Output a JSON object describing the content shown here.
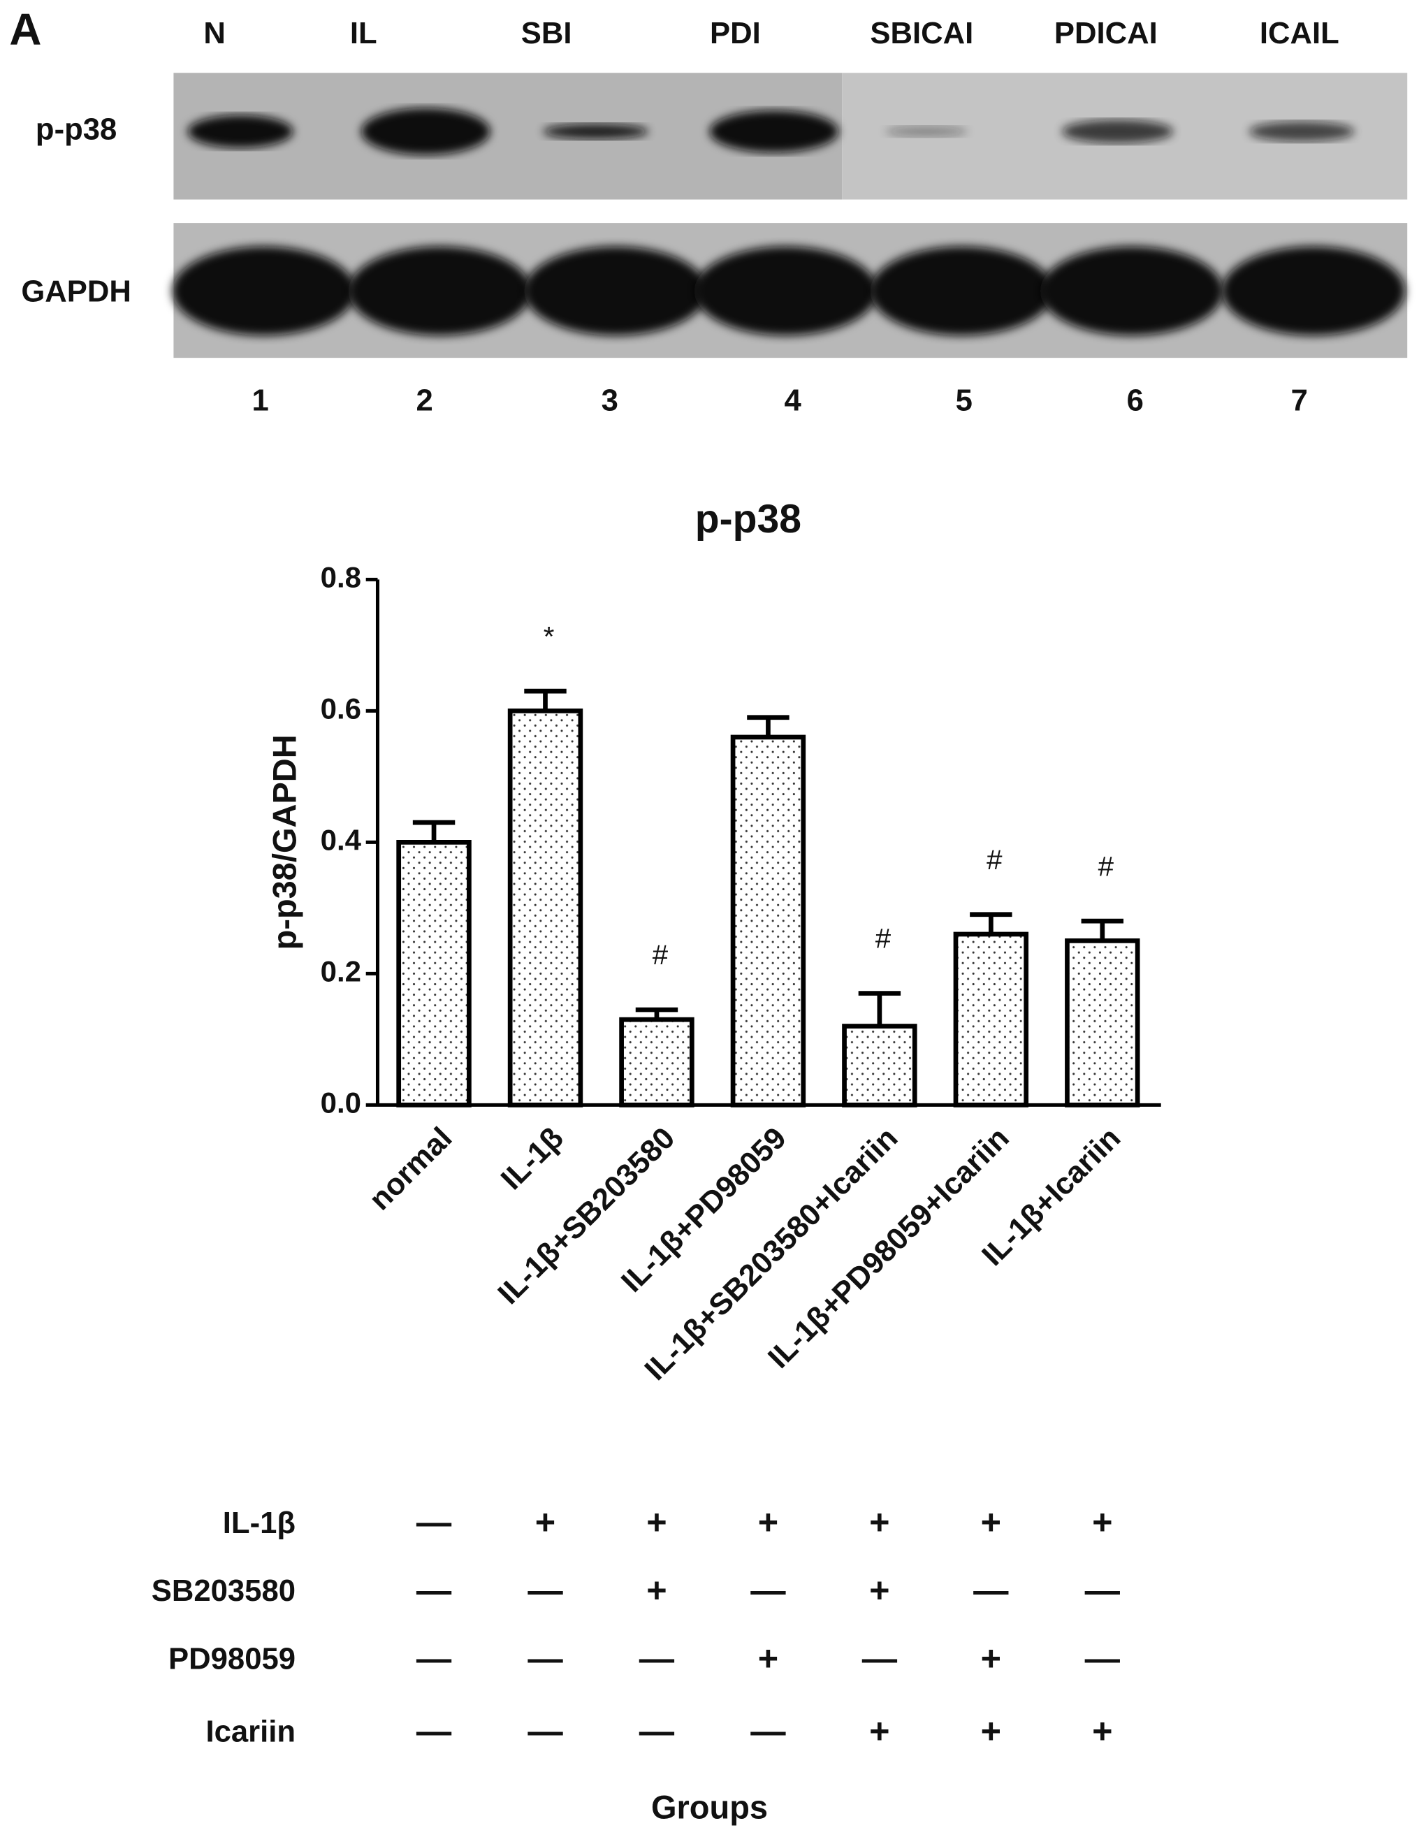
{
  "panel_label": "A",
  "blot": {
    "lane_labels": [
      "N",
      "IL",
      "SBI",
      "PDI",
      "SBICAI",
      "PDICAI",
      "ICAIL"
    ],
    "row_labels": [
      "p-p38",
      "GAPDH"
    ],
    "lane_numbers": [
      "1",
      "2",
      "3",
      "4",
      "5",
      "6",
      "7"
    ]
  },
  "chart_data": {
    "type": "bar",
    "title": "p-p38",
    "y_label": "p-p38/GAPDH",
    "x_label": "Groups",
    "categories": [
      "normal",
      "IL-1β",
      "IL-1β+SB203580",
      "IL-1β+PD98059",
      "IL-1β+SB203580+Icariin",
      "IL-1β+PD98059+Icariin",
      "IL-1β+Icariin"
    ],
    "values": [
      0.4,
      0.6,
      0.13,
      0.56,
      0.12,
      0.26,
      0.25
    ],
    "errors": [
      0.03,
      0.03,
      0.015,
      0.03,
      0.05,
      0.03,
      0.03
    ],
    "annotations": [
      null,
      "*",
      "#",
      null,
      "#",
      "#",
      "#"
    ],
    "color": "#ffffff",
    "ylim": [
      0,
      0.8
    ],
    "yticks": [
      {
        "value": 0,
        "label": "0.0"
      },
      0.2,
      0.4,
      0.6,
      0.8
    ]
  },
  "treatment_table": {
    "rows": [
      {
        "label": "IL-1β",
        "cells": [
          "—",
          "+",
          "+",
          "+",
          "+",
          "+",
          "+"
        ]
      },
      {
        "label": "SB203580",
        "cells": [
          "—",
          "—",
          "+",
          "—",
          "+",
          "—",
          "—"
        ]
      },
      {
        "label": "PD98059",
        "cells": [
          "—",
          "—",
          "—",
          "+",
          "—",
          "+",
          "—"
        ]
      },
      {
        "label": "Icariin",
        "cells": [
          "—",
          "—",
          "—",
          "—",
          "+",
          "+",
          "+"
        ]
      }
    ]
  }
}
